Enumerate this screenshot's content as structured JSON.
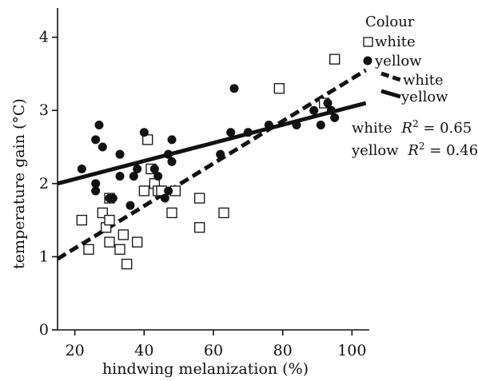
{
  "chart_data": {
    "type": "scatter",
    "title": "",
    "xlabel": "hindwing melanization (%)",
    "ylabel": "temperature gain (°C)",
    "xlim": [
      15,
      105
    ],
    "ylim": [
      0,
      4.4
    ],
    "xticks": [
      20,
      40,
      60,
      80,
      100
    ],
    "yticks": [
      0,
      1,
      2,
      3,
      4
    ],
    "grid": false,
    "legend": {
      "title": "Colour",
      "position": "right",
      "markers": [
        {
          "label": "white",
          "marker": "open-square"
        },
        {
          "label": "yellow",
          "marker": "filled-circle"
        }
      ],
      "lines": [
        {
          "label": "white",
          "style": "dashed"
        },
        {
          "label": "yellow",
          "style": "solid"
        }
      ]
    },
    "r2_annotations": [
      {
        "series": "white",
        "value": "0.65"
      },
      {
        "series": "yellow",
        "value": "0.46"
      }
    ],
    "series": [
      {
        "name": "white",
        "marker": "open-square",
        "points": [
          [
            22,
            1.5
          ],
          [
            24,
            1.1
          ],
          [
            28,
            1.6
          ],
          [
            29,
            1.4
          ],
          [
            30,
            1.8
          ],
          [
            30,
            1.5
          ],
          [
            30,
            1.2
          ],
          [
            33,
            1.1
          ],
          [
            34,
            1.3
          ],
          [
            35,
            0.9
          ],
          [
            38,
            1.2
          ],
          [
            40,
            1.9
          ],
          [
            41,
            2.6
          ],
          [
            42,
            2.2
          ],
          [
            43,
            2.0
          ],
          [
            44,
            1.9
          ],
          [
            45,
            1.9
          ],
          [
            48,
            1.6
          ],
          [
            49,
            1.9
          ],
          [
            56,
            1.8
          ],
          [
            56,
            1.4
          ],
          [
            63,
            1.6
          ],
          [
            79,
            3.3
          ],
          [
            92,
            3.1
          ],
          [
            95,
            3.7
          ]
        ],
        "fit": {
          "x": [
            15,
            104
          ],
          "y": [
            0.97,
            3.55
          ]
        }
      },
      {
        "name": "yellow",
        "marker": "filled-circle",
        "points": [
          [
            22,
            2.2
          ],
          [
            26,
            2.6
          ],
          [
            26,
            1.9
          ],
          [
            26,
            2.0
          ],
          [
            27,
            2.8
          ],
          [
            28,
            2.5
          ],
          [
            30,
            1.8
          ],
          [
            31,
            1.8
          ],
          [
            33,
            2.1
          ],
          [
            33,
            2.4
          ],
          [
            36,
            1.7
          ],
          [
            37,
            2.1
          ],
          [
            38,
            2.2
          ],
          [
            40,
            2.7
          ],
          [
            43,
            2.2
          ],
          [
            44,
            2.1
          ],
          [
            46,
            1.8
          ],
          [
            47,
            1.9
          ],
          [
            47,
            2.4
          ],
          [
            48,
            2.6
          ],
          [
            48,
            2.3
          ],
          [
            62,
            2.4
          ],
          [
            65,
            2.7
          ],
          [
            66,
            3.3
          ],
          [
            70,
            2.7
          ],
          [
            76,
            2.8
          ],
          [
            84,
            2.8
          ],
          [
            89,
            3.0
          ],
          [
            91,
            2.8
          ],
          [
            93,
            3.1
          ],
          [
            94,
            3.0
          ],
          [
            95,
            2.9
          ]
        ],
        "fit": {
          "x": [
            15,
            104
          ],
          "y": [
            2.0,
            3.1
          ]
        }
      }
    ]
  }
}
